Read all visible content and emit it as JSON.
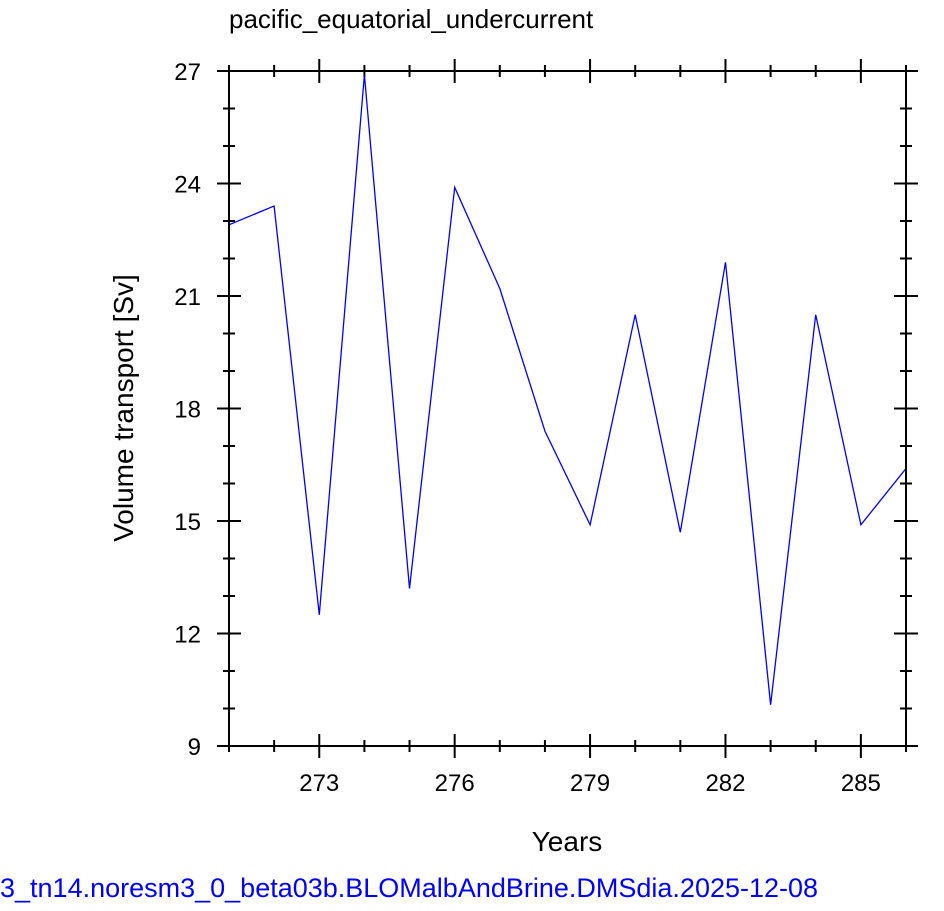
{
  "colors": {
    "series": "#0000ff",
    "axes": "#000000",
    "footer": "#0000ff",
    "background": "#ffffff"
  },
  "footer_text": "3_tn14.noresm3_0_beta03b.BLOMalbAndBrine.DMSdia.2025-12-08",
  "chart_data": {
    "type": "line",
    "title": "pacific_equatorial_undercurrent",
    "xlabel": "Years",
    "ylabel": "Volume transport [Sv]",
    "xlim": [
      271,
      286
    ],
    "ylim": [
      9,
      27
    ],
    "xticks": [
      273,
      276,
      279,
      282,
      285
    ],
    "yticks": [
      9,
      12,
      15,
      18,
      21,
      24,
      27
    ],
    "grid": false,
    "series": [
      {
        "x": [
          271,
          272,
          273,
          274,
          275,
          276,
          277,
          278,
          279,
          280,
          281,
          282,
          283,
          284,
          285,
          286
        ],
        "values": [
          22.9,
          23.4,
          12.5,
          26.9,
          13.2,
          23.9,
          21.2,
          17.4,
          14.9,
          20.5,
          14.7,
          21.9,
          10.1,
          20.5,
          14.9,
          16.4
        ]
      }
    ]
  }
}
